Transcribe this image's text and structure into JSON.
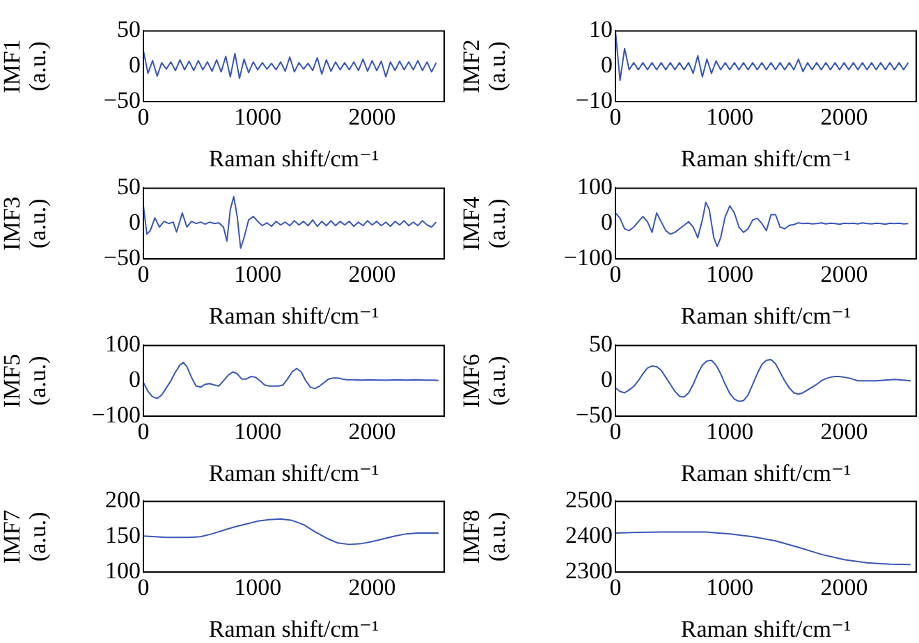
{
  "chart_data": [
    {
      "type": "line",
      "ylabel": "IMF1 (a.u.)",
      "xlabel": "Raman shift/cm⁻¹",
      "color": "#3857b8",
      "xlim": [
        0,
        2630
      ],
      "xticks": [
        0,
        1000,
        2000
      ],
      "ylim": [
        -50,
        50
      ],
      "yticks": [
        -50,
        0,
        50
      ],
      "x": [
        0,
        40,
        80,
        120,
        160,
        200,
        240,
        280,
        320,
        360,
        400,
        440,
        480,
        520,
        560,
        600,
        640,
        680,
        720,
        760,
        800,
        840,
        880,
        920,
        960,
        1000,
        1040,
        1080,
        1120,
        1160,
        1200,
        1240,
        1280,
        1320,
        1360,
        1400,
        1440,
        1480,
        1520,
        1560,
        1600,
        1640,
        1680,
        1720,
        1760,
        1800,
        1840,
        1880,
        1920,
        1960,
        2000,
        2040,
        2080,
        2120,
        2160,
        2200,
        2240,
        2280,
        2320,
        2360,
        2400,
        2440,
        2480,
        2520,
        2560
      ],
      "values": [
        22,
        -10,
        8,
        -14,
        5,
        -4,
        6,
        -6,
        9,
        -5,
        7,
        -6,
        8,
        -5,
        6,
        -7,
        9,
        -8,
        14,
        -15,
        18,
        -17,
        10,
        -9,
        6,
        -5,
        5,
        -4,
        4,
        -5,
        6,
        -7,
        13,
        -8,
        5,
        -4,
        4,
        -6,
        12,
        -11,
        9,
        -7,
        6,
        -5,
        5,
        -5,
        6,
        -6,
        10,
        -7,
        8,
        -6,
        7,
        -15,
        6,
        -6,
        7,
        -5,
        6,
        -5,
        8,
        -6,
        6,
        -8,
        5
      ]
    },
    {
      "type": "line",
      "ylabel": "IMF2 (a.u.)",
      "xlabel": "Raman shift/cm⁻¹",
      "color": "#3857b8",
      "xlim": [
        0,
        2630
      ],
      "xticks": [
        0,
        1000,
        2000
      ],
      "ylim": [
        -10,
        10
      ],
      "yticks": [
        -10,
        0,
        10
      ],
      "x": [
        0,
        40,
        80,
        120,
        160,
        200,
        240,
        280,
        320,
        360,
        400,
        440,
        480,
        520,
        560,
        600,
        640,
        680,
        720,
        760,
        800,
        840,
        880,
        920,
        960,
        1000,
        1040,
        1080,
        1120,
        1160,
        1200,
        1240,
        1280,
        1320,
        1360,
        1400,
        1440,
        1480,
        1520,
        1560,
        1600,
        1640,
        1680,
        1720,
        1760,
        1800,
        1840,
        1880,
        1920,
        1960,
        2000,
        2040,
        2080,
        2120,
        2160,
        2200,
        2240,
        2280,
        2320,
        2360,
        2400,
        2440,
        2480,
        2520,
        2560
      ],
      "values": [
        10,
        -4,
        5,
        -1,
        1,
        -1,
        1,
        -1,
        1,
        -1,
        1,
        -1,
        1,
        -1,
        1,
        -1,
        1,
        -2,
        3,
        -3,
        2,
        -2,
        1.5,
        -1,
        1,
        -1,
        1,
        -1,
        1,
        -1,
        1,
        -1,
        1,
        -1,
        1,
        -1,
        1,
        -1,
        1,
        -1,
        2,
        -1.5,
        1,
        -1,
        1,
        -1,
        1,
        -1,
        1,
        -1,
        1,
        -1,
        1,
        -1,
        1,
        -1,
        1,
        -1,
        1,
        -1,
        1,
        -1,
        1,
        -1,
        1
      ]
    },
    {
      "type": "line",
      "ylabel": "IMF3 (a.u.)",
      "xlabel": "Raman shift/cm⁻¹",
      "color": "#3857b8",
      "xlim": [
        0,
        2630
      ],
      "xticks": [
        0,
        1000,
        2000
      ],
      "ylim": [
        -50,
        50
      ],
      "yticks": [
        -50,
        0,
        50
      ],
      "x": [
        0,
        30,
        60,
        100,
        140,
        180,
        220,
        260,
        290,
        340,
        380,
        420,
        460,
        500,
        540,
        580,
        620,
        660,
        700,
        730,
        760,
        790,
        820,
        850,
        880,
        920,
        960,
        1000,
        1040,
        1080,
        1120,
        1160,
        1200,
        1240,
        1280,
        1320,
        1360,
        1400,
        1440,
        1480,
        1520,
        1560,
        1600,
        1640,
        1680,
        1720,
        1760,
        1800,
        1840,
        1880,
        1920,
        1960,
        2000,
        2040,
        2080,
        2120,
        2160,
        2200,
        2240,
        2280,
        2320,
        2360,
        2400,
        2440,
        2480,
        2520,
        2560
      ],
      "values": [
        25,
        -15,
        -10,
        8,
        -5,
        3,
        0,
        2,
        -12,
        15,
        -5,
        3,
        0,
        2,
        -1,
        2,
        0,
        1,
        -5,
        -25,
        20,
        38,
        10,
        -35,
        -20,
        5,
        10,
        3,
        -3,
        1,
        -4,
        3,
        -2,
        2,
        -3,
        4,
        -2,
        3,
        -3,
        5,
        -4,
        3,
        -3,
        4,
        -3,
        3,
        -2,
        3,
        -4,
        2,
        -3,
        4,
        -2,
        3,
        -3,
        2,
        -4,
        3,
        -2,
        4,
        -3,
        2,
        -3,
        4,
        -2,
        -5,
        2
      ]
    },
    {
      "type": "line",
      "ylabel": "IMF4 (a.u.)",
      "xlabel": "Raman shift/cm⁻¹",
      "color": "#3857b8",
      "xlim": [
        0,
        2630
      ],
      "xticks": [
        0,
        1000,
        2000
      ],
      "ylim": [
        -100,
        100
      ],
      "yticks": [
        -100,
        0,
        100
      ],
      "x": [
        0,
        40,
        80,
        120,
        160,
        200,
        240,
        280,
        320,
        360,
        400,
        440,
        480,
        520,
        560,
        600,
        640,
        680,
        720,
        760,
        790,
        820,
        860,
        890,
        920,
        960,
        1000,
        1040,
        1080,
        1120,
        1160,
        1200,
        1240,
        1280,
        1320,
        1360,
        1400,
        1440,
        1480,
        1520,
        1560,
        1600,
        1640,
        1680,
        1720,
        1760,
        1800,
        1840,
        1880,
        1920,
        1960,
        2000,
        2040,
        2080,
        2120,
        2160,
        2200,
        2240,
        2280,
        2320,
        2360,
        2400,
        2440,
        2480,
        2520,
        2560
      ],
      "values": [
        30,
        15,
        -15,
        -20,
        -10,
        5,
        20,
        5,
        -25,
        30,
        5,
        -20,
        -30,
        -25,
        -15,
        -5,
        5,
        -10,
        -40,
        10,
        60,
        40,
        -40,
        -65,
        -40,
        20,
        50,
        30,
        -10,
        -25,
        -15,
        10,
        15,
        0,
        -20,
        25,
        25,
        -10,
        -15,
        -5,
        -3,
        2,
        0,
        1,
        -1,
        0,
        2,
        -1,
        1,
        0,
        -2,
        1,
        0,
        1,
        -1,
        2,
        0,
        -1,
        1,
        0,
        -2,
        1,
        0,
        1,
        -1,
        0
      ]
    },
    {
      "type": "line",
      "ylabel": "IMF5 (a.u.)",
      "xlabel": "Raman shift/cm⁻¹",
      "color": "#3857b8",
      "xlim": [
        0,
        2630
      ],
      "xticks": [
        0,
        1000,
        2000
      ],
      "ylim": [
        -100,
        100
      ],
      "yticks": [
        -100,
        0,
        100
      ],
      "x": [
        0,
        40,
        80,
        120,
        160,
        200,
        240,
        280,
        320,
        350,
        380,
        420,
        460,
        500,
        540,
        580,
        620,
        660,
        700,
        740,
        780,
        820,
        860,
        900,
        940,
        980,
        1020,
        1060,
        1100,
        1140,
        1180,
        1220,
        1260,
        1300,
        1340,
        1380,
        1420,
        1460,
        1500,
        1540,
        1580,
        1620,
        1660,
        1700,
        1740,
        1780,
        1820,
        1900,
        1980,
        2060,
        2140,
        2220,
        2300,
        2380,
        2460,
        2540,
        2580
      ],
      "values": [
        -5,
        -30,
        -45,
        -50,
        -40,
        -20,
        0,
        25,
        45,
        52,
        40,
        10,
        -15,
        -18,
        -10,
        -8,
        -12,
        -15,
        0,
        15,
        25,
        20,
        5,
        5,
        12,
        10,
        0,
        -12,
        -15,
        -15,
        -15,
        -12,
        5,
        25,
        35,
        25,
        0,
        -18,
        -22,
        -15,
        -5,
        5,
        8,
        8,
        5,
        3,
        3,
        2,
        3,
        2,
        2,
        3,
        2,
        3,
        2,
        2,
        1
      ]
    },
    {
      "type": "line",
      "ylabel": "IMF6 (a.u.)",
      "xlabel": "Raman shift/cm⁻¹",
      "color": "#3857b8",
      "xlim": [
        0,
        2630
      ],
      "xticks": [
        0,
        1000,
        2000
      ],
      "ylim": [
        -50,
        50
      ],
      "yticks": [
        -50,
        0,
        50
      ],
      "x": [
        0,
        40,
        80,
        120,
        160,
        200,
        240,
        280,
        320,
        360,
        400,
        440,
        480,
        520,
        560,
        600,
        640,
        680,
        720,
        760,
        800,
        840,
        880,
        920,
        960,
        1000,
        1040,
        1080,
        1120,
        1160,
        1200,
        1240,
        1280,
        1320,
        1360,
        1400,
        1440,
        1480,
        1520,
        1560,
        1600,
        1640,
        1680,
        1720,
        1760,
        1800,
        1840,
        1880,
        1920,
        1960,
        2000,
        2040,
        2080,
        2120,
        2200,
        2280,
        2360,
        2440,
        2520,
        2580
      ],
      "values": [
        -10,
        -15,
        -17,
        -13,
        -8,
        0,
        10,
        18,
        21,
        20,
        15,
        5,
        -5,
        -15,
        -22,
        -23,
        -17,
        -5,
        10,
        22,
        28,
        29,
        22,
        10,
        -5,
        -18,
        -26,
        -29,
        -28,
        -20,
        -5,
        10,
        23,
        29,
        30,
        24,
        12,
        0,
        -10,
        -17,
        -19,
        -17,
        -13,
        -9,
        -5,
        0,
        3,
        5,
        6,
        6,
        5,
        4,
        2,
        0,
        0,
        0,
        1,
        2,
        1,
        0
      ]
    },
    {
      "type": "line",
      "ylabel": "IMF7 (a.u.)",
      "xlabel": "Raman shift/cm⁻¹",
      "color": "#3857b8",
      "xlim": [
        0,
        2630
      ],
      "xticks": [
        0,
        1000,
        2000
      ],
      "ylim": [
        100,
        200
      ],
      "yticks": [
        100,
        150,
        200
      ],
      "x": [
        0,
        100,
        200,
        300,
        400,
        500,
        600,
        700,
        800,
        900,
        1000,
        1100,
        1200,
        1300,
        1400,
        1500,
        1600,
        1700,
        1800,
        1900,
        2000,
        2100,
        2200,
        2300,
        2400,
        2500,
        2580
      ],
      "values": [
        151,
        150,
        149,
        149,
        149,
        150,
        154,
        159,
        164,
        168,
        172,
        174,
        175,
        173,
        167,
        157,
        148,
        141,
        139,
        140,
        143,
        147,
        151,
        154,
        155,
        155,
        155
      ]
    },
    {
      "type": "line",
      "ylabel": "IMF8 (a.u.)",
      "xlabel": "Raman shift/cm⁻¹",
      "color": "#3857b8",
      "xlim": [
        0,
        2630
      ],
      "xticks": [
        0,
        1000,
        2000
      ],
      "ylim": [
        2300,
        2500
      ],
      "yticks": [
        2300,
        2400,
        2500
      ],
      "x": [
        0,
        200,
        400,
        600,
        800,
        1000,
        1200,
        1400,
        1600,
        1800,
        2000,
        2200,
        2400,
        2580
      ],
      "values": [
        2410,
        2412,
        2413,
        2413,
        2413,
        2408,
        2400,
        2388,
        2370,
        2350,
        2335,
        2326,
        2322,
        2321
      ]
    }
  ]
}
